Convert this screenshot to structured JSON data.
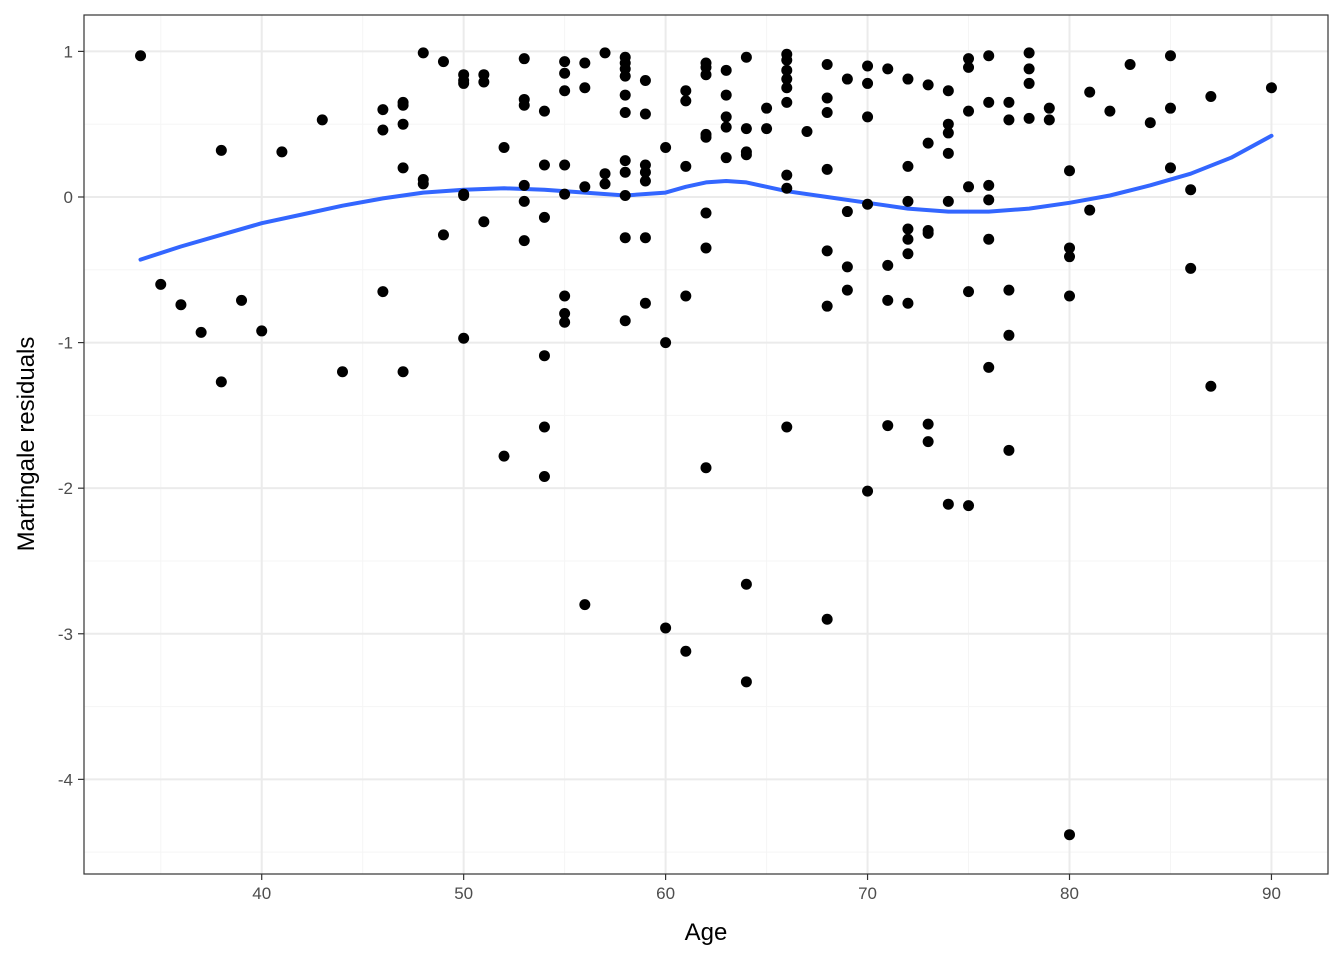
{
  "chart_data": {
    "type": "scatter",
    "xlabel": "Age",
    "ylabel": "Martingale residuals",
    "xlim": [
      31.2,
      92.8
    ],
    "ylim": [
      -4.65,
      1.25
    ],
    "x_ticks": [
      40,
      50,
      60,
      70,
      80,
      90
    ],
    "x_tick_labels": [
      "40",
      "50",
      "60",
      "70",
      "80",
      "90"
    ],
    "y_ticks": [
      -4,
      -3,
      -2,
      -1,
      0,
      1
    ],
    "y_tick_labels": [
      "-4",
      "-3",
      "-2",
      "-1",
      "0",
      "1"
    ],
    "x_minor": [
      35,
      45,
      55,
      65,
      75,
      85
    ],
    "y_minor": [
      -4.5,
      -3.5,
      -2.5,
      -1.5,
      -0.5,
      0.5
    ],
    "grid": true,
    "theme": "bw",
    "colors": {
      "points": "#000000",
      "smooth": "#3366ff",
      "grid_major": "#ebebeb",
      "grid_minor": "#f5f5f5",
      "frame": "#333333"
    },
    "points": [
      [
        34,
        0.97
      ],
      [
        35,
        -0.6
      ],
      [
        36,
        -0.74
      ],
      [
        37,
        -0.93
      ],
      [
        38,
        0.32
      ],
      [
        38,
        -1.27
      ],
      [
        39,
        -0.71
      ],
      [
        40,
        -0.92
      ],
      [
        41,
        0.31
      ],
      [
        43,
        0.53
      ],
      [
        44,
        -1.2
      ],
      [
        46,
        0.6
      ],
      [
        46,
        0.46
      ],
      [
        46,
        -0.65
      ],
      [
        47,
        0.65
      ],
      [
        47,
        0.63
      ],
      [
        47,
        0.5
      ],
      [
        47,
        0.2
      ],
      [
        47,
        -1.2
      ],
      [
        48,
        0.99
      ],
      [
        48,
        0.12
      ],
      [
        48,
        0.09
      ],
      [
        49,
        0.93
      ],
      [
        49,
        -0.26
      ],
      [
        50,
        0.84
      ],
      [
        50,
        0.8
      ],
      [
        50,
        0.78
      ],
      [
        50,
        0.02
      ],
      [
        50,
        0.01
      ],
      [
        50,
        -0.97
      ],
      [
        51,
        0.84
      ],
      [
        51,
        0.79
      ],
      [
        51,
        -0.17
      ],
      [
        52,
        0.34
      ],
      [
        52,
        -1.78
      ],
      [
        53,
        0.95
      ],
      [
        53,
        0.67
      ],
      [
        53,
        0.63
      ],
      [
        53,
        0.08
      ],
      [
        53,
        -0.03
      ],
      [
        53,
        -0.3
      ],
      [
        54,
        0.59
      ],
      [
        54,
        0.22
      ],
      [
        54,
        -0.14
      ],
      [
        54,
        -1.09
      ],
      [
        54,
        -1.58
      ],
      [
        54,
        -1.92
      ],
      [
        55,
        0.93
      ],
      [
        55,
        0.85
      ],
      [
        55,
        0.73
      ],
      [
        55,
        0.22
      ],
      [
        55,
        0.02
      ],
      [
        55,
        -0.68
      ],
      [
        55,
        -0.8
      ],
      [
        55,
        -0.86
      ],
      [
        56,
        0.92
      ],
      [
        56,
        0.75
      ],
      [
        56,
        0.07
      ],
      [
        56,
        -2.8
      ],
      [
        57,
        0.99
      ],
      [
        57,
        0.16
      ],
      [
        57,
        0.09
      ],
      [
        58,
        0.96
      ],
      [
        58,
        0.92
      ],
      [
        58,
        0.88
      ],
      [
        58,
        0.83
      ],
      [
        58,
        0.7
      ],
      [
        58,
        0.58
      ],
      [
        58,
        0.25
      ],
      [
        58,
        0.17
      ],
      [
        58,
        0.01
      ],
      [
        58,
        -0.28
      ],
      [
        58,
        -0.85
      ],
      [
        59,
        0.8
      ],
      [
        59,
        0.57
      ],
      [
        59,
        0.22
      ],
      [
        59,
        0.17
      ],
      [
        59,
        0.11
      ],
      [
        59,
        -0.28
      ],
      [
        59,
        -0.73
      ],
      [
        60,
        0.34
      ],
      [
        60,
        -1.0
      ],
      [
        60,
        -2.96
      ],
      [
        61,
        0.73
      ],
      [
        61,
        0.66
      ],
      [
        61,
        0.21
      ],
      [
        61,
        -0.68
      ],
      [
        61,
        -3.12
      ],
      [
        62,
        0.92
      ],
      [
        62,
        0.89
      ],
      [
        62,
        0.84
      ],
      [
        62,
        0.43
      ],
      [
        62,
        0.41
      ],
      [
        62,
        -0.11
      ],
      [
        62,
        -0.35
      ],
      [
        62,
        -1.86
      ],
      [
        63,
        0.87
      ],
      [
        63,
        0.7
      ],
      [
        63,
        0.55
      ],
      [
        63,
        0.48
      ],
      [
        63,
        0.27
      ],
      [
        64,
        0.96
      ],
      [
        64,
        0.47
      ],
      [
        64,
        0.31
      ],
      [
        64,
        0.29
      ],
      [
        64,
        -2.66
      ],
      [
        64,
        -3.33
      ],
      [
        65,
        0.61
      ],
      [
        65,
        0.47
      ],
      [
        66,
        0.98
      ],
      [
        66,
        0.94
      ],
      [
        66,
        0.87
      ],
      [
        66,
        0.81
      ],
      [
        66,
        0.75
      ],
      [
        66,
        0.65
      ],
      [
        66,
        0.15
      ],
      [
        66,
        0.06
      ],
      [
        66,
        -1.58
      ],
      [
        67,
        0.45
      ],
      [
        68,
        0.91
      ],
      [
        68,
        0.68
      ],
      [
        68,
        0.58
      ],
      [
        68,
        0.19
      ],
      [
        68,
        -0.37
      ],
      [
        68,
        -0.75
      ],
      [
        68,
        -2.9
      ],
      [
        69,
        0.81
      ],
      [
        69,
        -0.1
      ],
      [
        69,
        -0.48
      ],
      [
        69,
        -0.64
      ],
      [
        70,
        0.9
      ],
      [
        70,
        0.78
      ],
      [
        70,
        0.55
      ],
      [
        70,
        -0.05
      ],
      [
        70,
        -2.02
      ],
      [
        71,
        0.88
      ],
      [
        71,
        -0.47
      ],
      [
        71,
        -0.71
      ],
      [
        71,
        -1.57
      ],
      [
        72,
        0.81
      ],
      [
        72,
        0.21
      ],
      [
        72,
        -0.03
      ],
      [
        72,
        -0.22
      ],
      [
        72,
        -0.29
      ],
      [
        72,
        -0.39
      ],
      [
        72,
        -0.73
      ],
      [
        73,
        0.77
      ],
      [
        73,
        0.37
      ],
      [
        73,
        -0.23
      ],
      [
        73,
        -0.25
      ],
      [
        73,
        -1.56
      ],
      [
        73,
        -1.68
      ],
      [
        74,
        0.73
      ],
      [
        74,
        0.5
      ],
      [
        74,
        0.44
      ],
      [
        74,
        0.3
      ],
      [
        74,
        -0.03
      ],
      [
        74,
        -2.11
      ],
      [
        75,
        0.95
      ],
      [
        75,
        0.89
      ],
      [
        75,
        0.59
      ],
      [
        75,
        0.07
      ],
      [
        75,
        -0.65
      ],
      [
        75,
        -2.12
      ],
      [
        76,
        0.97
      ],
      [
        76,
        0.65
      ],
      [
        76,
        0.08
      ],
      [
        76,
        -0.02
      ],
      [
        76,
        -0.29
      ],
      [
        76,
        -1.17
      ],
      [
        77,
        0.65
      ],
      [
        77,
        0.53
      ],
      [
        77,
        -0.64
      ],
      [
        77,
        -0.95
      ],
      [
        77,
        -1.74
      ],
      [
        78,
        0.99
      ],
      [
        78,
        0.88
      ],
      [
        78,
        0.78
      ],
      [
        78,
        0.54
      ],
      [
        79,
        0.61
      ],
      [
        79,
        0.53
      ],
      [
        80,
        0.18
      ],
      [
        80,
        -0.35
      ],
      [
        80,
        -0.41
      ],
      [
        80,
        -0.68
      ],
      [
        80,
        -4.38
      ],
      [
        81,
        0.72
      ],
      [
        81,
        -0.09
      ],
      [
        82,
        0.59
      ],
      [
        83,
        0.91
      ],
      [
        84,
        0.51
      ],
      [
        85,
        0.97
      ],
      [
        85,
        0.61
      ],
      [
        85,
        0.2
      ],
      [
        86,
        0.05
      ],
      [
        86,
        -0.49
      ],
      [
        87,
        0.69
      ],
      [
        87,
        -1.3
      ],
      [
        90,
        0.75
      ]
    ],
    "smooth": [
      [
        34,
        -0.43
      ],
      [
        36,
        -0.34
      ],
      [
        38,
        -0.26
      ],
      [
        40,
        -0.18
      ],
      [
        42,
        -0.12
      ],
      [
        44,
        -0.06
      ],
      [
        46,
        -0.01
      ],
      [
        48,
        0.03
      ],
      [
        50,
        0.05
      ],
      [
        52,
        0.06
      ],
      [
        54,
        0.05
      ],
      [
        56,
        0.03
      ],
      [
        58,
        0.01
      ],
      [
        60,
        0.03
      ],
      [
        61,
        0.07
      ],
      [
        62,
        0.1
      ],
      [
        63,
        0.11
      ],
      [
        64,
        0.1
      ],
      [
        65,
        0.07
      ],
      [
        66,
        0.04
      ],
      [
        68,
        0.0
      ],
      [
        70,
        -0.04
      ],
      [
        72,
        -0.08
      ],
      [
        74,
        -0.1
      ],
      [
        76,
        -0.1
      ],
      [
        78,
        -0.08
      ],
      [
        80,
        -0.04
      ],
      [
        82,
        0.01
      ],
      [
        84,
        0.08
      ],
      [
        86,
        0.16
      ],
      [
        88,
        0.27
      ],
      [
        90,
        0.42
      ]
    ]
  }
}
